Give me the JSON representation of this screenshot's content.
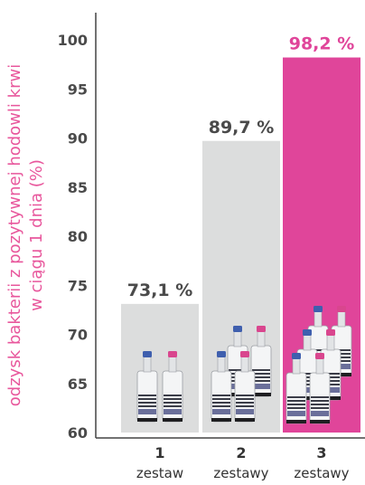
{
  "chart_data": {
    "type": "bar",
    "ylabel_line1": "odzysk bakterii z pozytywnej hodowli krwi",
    "ylabel_line2": "w ciągu 1 dnia (%)",
    "ylim": [
      60,
      100
    ],
    "yticks": [
      60,
      65,
      70,
      75,
      80,
      85,
      90,
      95,
      100
    ],
    "categories": [
      {
        "num": "1",
        "label": "zestaw"
      },
      {
        "num": "2",
        "label": "zestawy"
      },
      {
        "num": "3",
        "label": "zestawy"
      }
    ],
    "values": [
      73.1,
      89.7,
      98.2
    ],
    "value_labels": [
      "73,1 %",
      "89,7 %",
      "98,2 %"
    ],
    "bottle_counts": [
      2,
      4,
      6
    ],
    "colors": {
      "bar_default": "#dcdddd",
      "bar_highlight": "#e0459a",
      "value_default": "#4a4a4a",
      "value_highlight": "#e0459a",
      "ylabel": "#e8579c",
      "cap_blue": "#3f5fae",
      "cap_pink": "#d9468e"
    },
    "highlight_index": 2,
    "grid": false
  }
}
